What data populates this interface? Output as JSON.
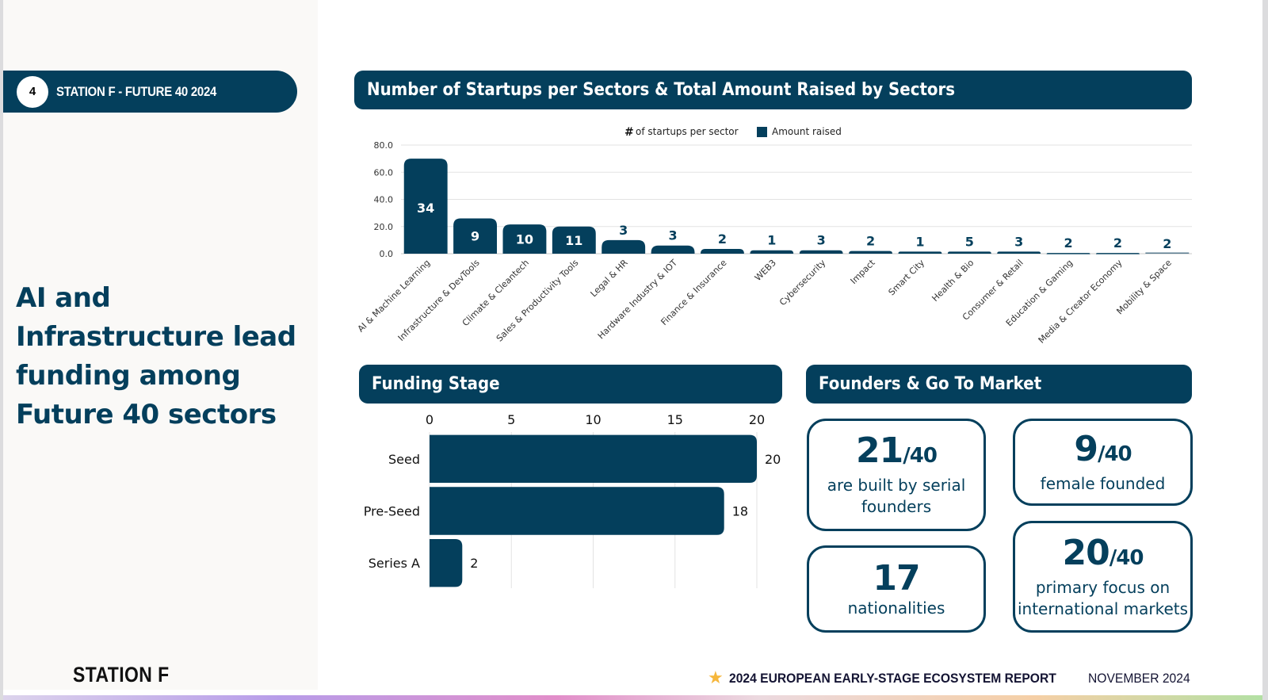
{
  "sidebar": {
    "page_number": "4",
    "pill_label": "STATION F - FUTURE 40 2024",
    "headline": "AI and Infrastructure lead funding among Future 40 sectors",
    "brand": "STATION F"
  },
  "sections": {
    "sectors_title": "Number of Startups per Sectors & Total Amount Raised by Sectors",
    "funding_title": "Funding Stage",
    "founders_title": "Founders & Go To Market"
  },
  "chart_data": [
    {
      "type": "bar",
      "title": "Number of Startups per Sectors & Total Amount Raised by Sectors",
      "legend": {
        "placement": "top-center",
        "entries": [
          {
            "symbol": "#",
            "label": "of startups per sector"
          },
          {
            "symbol": "square",
            "label": "Amount raised",
            "color": "#043f5c"
          }
        ]
      },
      "ylim": [
        0,
        80
      ],
      "yticks": [
        "0.0",
        "20.0",
        "40.0",
        "60.0",
        "80.0"
      ],
      "grid": true,
      "xlabel": "",
      "ylabel": "",
      "categories": [
        "AI & Machine Learning",
        "Infrastructure & DevTools",
        "Climate & Cleantech",
        "Sales & Productivity Tools",
        "Legal & HR",
        "Hardware Industry & IOT",
        "Finance & Insurance",
        "WEB3",
        "Cybersecurity",
        "Impact",
        "Smart City",
        "Health & Bio",
        "Consumer & Retail",
        "Education & Gaming",
        "Media & Creator Economy",
        "Mobility & Space"
      ],
      "series": [
        {
          "name": "Amount raised",
          "values": [
            70,
            26,
            21.5,
            20,
            10,
            6,
            3.5,
            2.5,
            2.5,
            2,
            1.5,
            1.5,
            1.5,
            0.5,
            0.5,
            0
          ]
        },
        {
          "name": "# of startups per sector",
          "values": [
            34,
            9,
            10,
            11,
            3,
            3,
            2,
            1,
            3,
            2,
            1,
            5,
            3,
            2,
            2,
            2
          ]
        }
      ],
      "color": "#043f5c"
    },
    {
      "type": "bar",
      "orientation": "horizontal",
      "title": "Funding Stage",
      "categories": [
        "Seed",
        "Pre-Seed",
        "Series A"
      ],
      "values": [
        20,
        18,
        2
      ],
      "xlim": [
        0,
        20
      ],
      "xticks": [
        "0",
        "5",
        "10",
        "15",
        "20"
      ],
      "axis_position": "top",
      "grid": true,
      "color": "#043f5c"
    }
  ],
  "founders": {
    "cards": [
      {
        "value": "21",
        "denominator": "/40",
        "desc_line1": "are built by serial",
        "desc_line2": "founders"
      },
      {
        "value": "9",
        "denominator": "/40",
        "desc_line1": "female founded",
        "desc_line2": ""
      },
      {
        "value": "17",
        "denominator": "",
        "desc_line1": "nationalities",
        "desc_line2": ""
      },
      {
        "value": "20",
        "denominator": "/40",
        "desc_line1": "primary focus on",
        "desc_line2": "international markets"
      }
    ]
  },
  "footer": {
    "star_icon": "star-icon",
    "report_title": "2024 EUROPEAN EARLY-STAGE ECOSYSTEM REPORT",
    "date": "NOVEMBER 2024",
    "accent_color": "#f6b73c"
  },
  "theme": {
    "primary": "#043f5c",
    "sidebar_bg": "#faf9f7"
  }
}
